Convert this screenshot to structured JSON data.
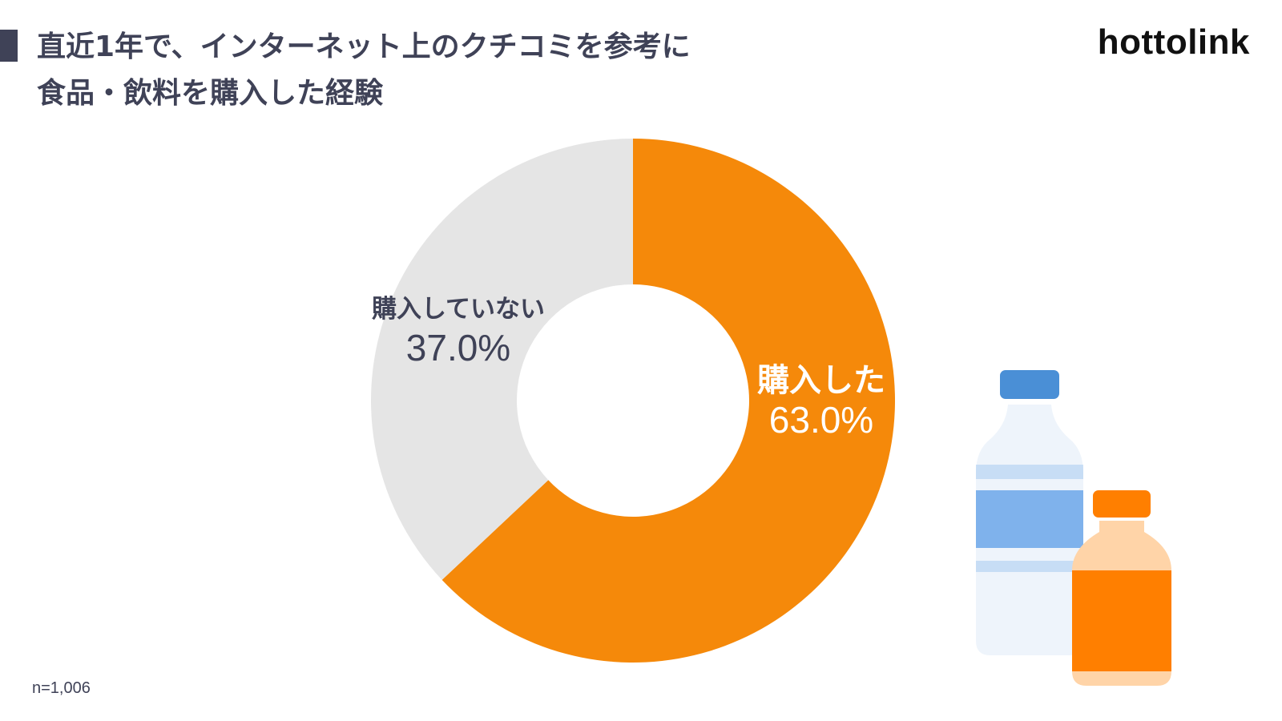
{
  "header": {
    "title_line1": "直近1年で、インターネット上のクチコミを参考に",
    "title_line2": "食品・飲料を購入した経験",
    "logo": "hottolink"
  },
  "footer": {
    "sample_size": "n=1,006"
  },
  "illustration": {
    "icon": "bottles-icon",
    "colors": {
      "water_cap": "#4a8fd6",
      "water_body": "#eef4fb",
      "water_label": "#7fb2ec",
      "juice_cap": "#ff7f00",
      "juice_body": "#ffd4a8",
      "juice_label": "#ff7f00"
    }
  },
  "chart_data": {
    "type": "pie",
    "style": "donut",
    "title": "直近1年で、インターネット上のクチコミを参考に食品・飲料を購入した経験",
    "slices": [
      {
        "label": "購入した",
        "value": 63.0,
        "value_label": "63.0%",
        "color": "#f5890a",
        "label_color": "#ffffff"
      },
      {
        "label": "購入していない",
        "value": 37.0,
        "value_label": "37.0%",
        "color": "#e5e5e5",
        "label_color": "#3f4257"
      }
    ]
  }
}
